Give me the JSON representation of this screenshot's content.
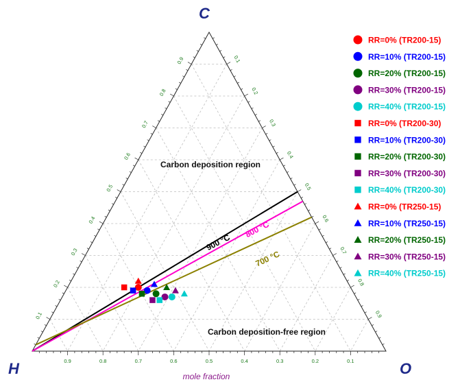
{
  "chart_data": {
    "type": "ternary-scatter",
    "vertices": {
      "top": "C",
      "left": "H",
      "right": "O"
    },
    "xlabel": "mole fraction",
    "h_ticks": [
      "0.9",
      "0.8",
      "0.7",
      "0.6",
      "0.5",
      "0.4",
      "0.3",
      "0.2",
      "0.1"
    ],
    "c_ticks": [
      "0.1",
      "0.2",
      "0.3",
      "0.4",
      "0.5",
      "0.6",
      "0.7",
      "0.8",
      "0.9"
    ],
    "o_ticks": [
      "0.1",
      "0.2",
      "0.3",
      "0.4",
      "0.5",
      "0.6",
      "0.7",
      "0.8",
      "0.9"
    ],
    "grid": true,
    "regions": {
      "upper": "Carbon deposition region",
      "lower": "Carbon deposition-free region"
    },
    "boundaries": [
      {
        "label": "900 °C",
        "color": "#000000",
        "from": {
          "C": 0.0,
          "H": 1.0,
          "O": 0.0
        },
        "to": {
          "C": 0.5,
          "H": 0.0,
          "O": 0.5
        }
      },
      {
        "label": "800 °C",
        "color": "#ff00cc",
        "from": {
          "C": 0.0,
          "H": 1.0,
          "O": 0.0
        },
        "to": {
          "C": 0.47,
          "H": 0.0,
          "O": 0.53
        }
      },
      {
        "label": "700 °C",
        "color": "#8b8000",
        "from": {
          "C": 0.02,
          "H": 0.98,
          "O": 0.0
        },
        "to": {
          "C": 0.42,
          "H": 0.0,
          "O": 0.58
        }
      }
    ],
    "legend_position": "right",
    "series": [
      {
        "name": "RR=0% (TR200-15)",
        "marker": "circle",
        "color": "#ff0000",
        "points": [
          {
            "C": 0.2,
            "H": 0.6,
            "O": 0.2
          }
        ]
      },
      {
        "name": "RR=10% (TR200-15)",
        "marker": "circle",
        "color": "#0000ff",
        "points": [
          {
            "C": 0.19,
            "H": 0.58,
            "O": 0.23
          }
        ]
      },
      {
        "name": "RR=20% (TR200-15)",
        "marker": "circle",
        "color": "#006600",
        "points": [
          {
            "C": 0.18,
            "H": 0.56,
            "O": 0.26
          }
        ]
      },
      {
        "name": "RR=30% (TR200-15)",
        "marker": "circle",
        "color": "#800080",
        "points": [
          {
            "C": 0.17,
            "H": 0.54,
            "O": 0.29
          }
        ]
      },
      {
        "name": "RR=40% (TR200-15)",
        "marker": "circle",
        "color": "#00cccc",
        "points": [
          {
            "C": 0.17,
            "H": 0.52,
            "O": 0.31
          }
        ]
      },
      {
        "name": "RR=0% (TR200-30)",
        "marker": "square",
        "color": "#ff0000",
        "points": [
          {
            "C": 0.2,
            "H": 0.64,
            "O": 0.16
          }
        ]
      },
      {
        "name": "RR=10% (TR200-30)",
        "marker": "square",
        "color": "#0000ff",
        "points": [
          {
            "C": 0.19,
            "H": 0.62,
            "O": 0.19
          }
        ]
      },
      {
        "name": "RR=20% (TR200-30)",
        "marker": "square",
        "color": "#006600",
        "points": [
          {
            "C": 0.18,
            "H": 0.6,
            "O": 0.22
          }
        ]
      },
      {
        "name": "RR=30% (TR200-30)",
        "marker": "square",
        "color": "#800080",
        "points": [
          {
            "C": 0.16,
            "H": 0.58,
            "O": 0.26
          }
        ]
      },
      {
        "name": "RR=40% (TR200-30)",
        "marker": "square",
        "color": "#00cccc",
        "points": [
          {
            "C": 0.16,
            "H": 0.56,
            "O": 0.28
          }
        ]
      },
      {
        "name": "RR=0% (TR250-15)",
        "marker": "triangle",
        "color": "#ff0000",
        "points": [
          {
            "C": 0.22,
            "H": 0.59,
            "O": 0.19
          }
        ]
      },
      {
        "name": "RR=10% (TR250-15)",
        "marker": "triangle",
        "color": "#0000ff",
        "points": [
          {
            "C": 0.21,
            "H": 0.55,
            "O": 0.24
          }
        ]
      },
      {
        "name": "RR=20% (TR250-15)",
        "marker": "triangle",
        "color": "#006600",
        "points": [
          {
            "C": 0.2,
            "H": 0.52,
            "O": 0.28
          }
        ]
      },
      {
        "name": "RR=30% (TR250-15)",
        "marker": "triangle",
        "color": "#800080",
        "points": [
          {
            "C": 0.19,
            "H": 0.5,
            "O": 0.31
          }
        ]
      },
      {
        "name": "RR=40% (TR250-15)",
        "marker": "triangle",
        "color": "#00cccc",
        "points": [
          {
            "C": 0.18,
            "H": 0.48,
            "O": 0.34
          }
        ]
      }
    ]
  }
}
